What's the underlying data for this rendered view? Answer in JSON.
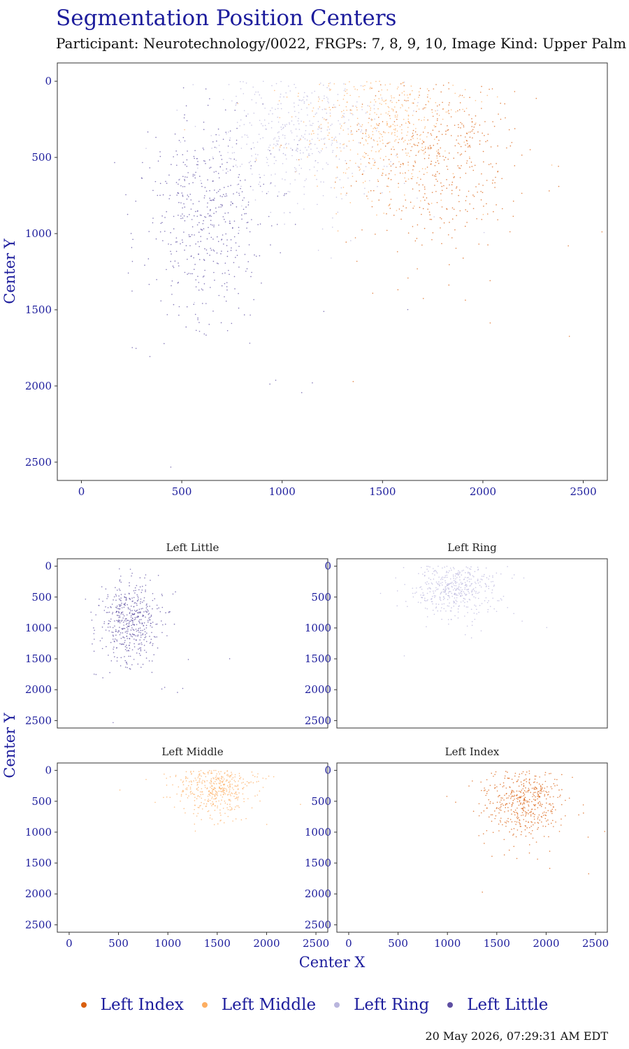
{
  "title": "Segmentation Position Centers",
  "subtitle": "Participant: Neurotechnology/0022, FRGPs: 7, 8, 9, 10, Image Kind: Upper Palm",
  "timestamp": "20 May 2026, 07:29:31 AM EDT",
  "legend": [
    {
      "label": "Left Index",
      "color": "#d95f0e"
    },
    {
      "label": "Left Middle",
      "color": "#fdae61"
    },
    {
      "label": "Left Ring",
      "color": "#b9b5dd"
    },
    {
      "label": "Left Little",
      "color": "#5e4fa2"
    }
  ],
  "chart_data": [
    {
      "type": "scatter",
      "panel": "combined",
      "title": "",
      "xlabel": "",
      "ylabel": "Center Y",
      "xlim": [
        -120,
        2620
      ],
      "ylim": [
        2620,
        -120
      ],
      "y_reversed": true,
      "xticks": [
        0,
        500,
        1000,
        1500,
        2000,
        2500
      ],
      "yticks": [
        0,
        500,
        1000,
        1500,
        2000,
        2500
      ],
      "series": [
        {
          "name": "Left Index",
          "color": "#d95f0e",
          "center": [
            1790,
            520
          ],
          "spread": [
            190,
            300
          ],
          "count": 500
        },
        {
          "name": "Left Middle",
          "color": "#fdae61",
          "center": [
            1470,
            260
          ],
          "spread": [
            190,
            230
          ],
          "count": 500
        },
        {
          "name": "Left Ring",
          "color": "#b9b5dd",
          "center": [
            1050,
            320
          ],
          "spread": [
            230,
            260
          ],
          "count": 500
        },
        {
          "name": "Left Little",
          "color": "#5e4fa2",
          "center": [
            620,
            920
          ],
          "spread": [
            160,
            330
          ],
          "count": 500
        }
      ]
    },
    {
      "type": "scatter",
      "panel": "facet",
      "title": "Left Little",
      "xlim": [
        -120,
        2620
      ],
      "ylim": [
        2620,
        -120
      ],
      "xticks": [
        0,
        500,
        1000,
        1500,
        2000,
        2500
      ],
      "yticks": [
        0,
        500,
        1000,
        1500,
        2000,
        2500
      ],
      "series": [
        {
          "name": "Left Little",
          "color": "#5e4fa2",
          "center": [
            620,
            920
          ],
          "spread": [
            160,
            330
          ],
          "count": 500
        }
      ]
    },
    {
      "type": "scatter",
      "panel": "facet",
      "title": "Left Ring",
      "xlim": [
        -120,
        2620
      ],
      "ylim": [
        2620,
        -120
      ],
      "xticks": [
        0,
        500,
        1000,
        1500,
        2000,
        2500
      ],
      "yticks": [
        0,
        500,
        1000,
        1500,
        2000,
        2500
      ],
      "series": [
        {
          "name": "Left Ring",
          "color": "#b9b5dd",
          "center": [
            1050,
            320
          ],
          "spread": [
            230,
            260
          ],
          "count": 500
        }
      ]
    },
    {
      "type": "scatter",
      "panel": "facet",
      "title": "Left Middle",
      "xlim": [
        -120,
        2620
      ],
      "ylim": [
        2620,
        -120
      ],
      "xticks": [
        0,
        500,
        1000,
        1500,
        2000,
        2500
      ],
      "yticks": [
        0,
        500,
        1000,
        1500,
        2000,
        2500
      ],
      "series": [
        {
          "name": "Left Middle",
          "color": "#fdae61",
          "center": [
            1470,
            260
          ],
          "spread": [
            190,
            230
          ],
          "count": 500
        }
      ]
    },
    {
      "type": "scatter",
      "panel": "facet",
      "title": "Left Index",
      "xlim": [
        -120,
        2620
      ],
      "ylim": [
        2620,
        -120
      ],
      "xticks": [
        0,
        500,
        1000,
        1500,
        2000,
        2500
      ],
      "yticks": [
        0,
        500,
        1000,
        1500,
        2000,
        2500
      ],
      "series": [
        {
          "name": "Left Index",
          "color": "#d95f0e",
          "center": [
            1790,
            520
          ],
          "spread": [
            190,
            300
          ],
          "count": 500
        }
      ]
    }
  ],
  "facet_axes": {
    "xlabel": "Center X",
    "ylabel": "Center Y"
  }
}
